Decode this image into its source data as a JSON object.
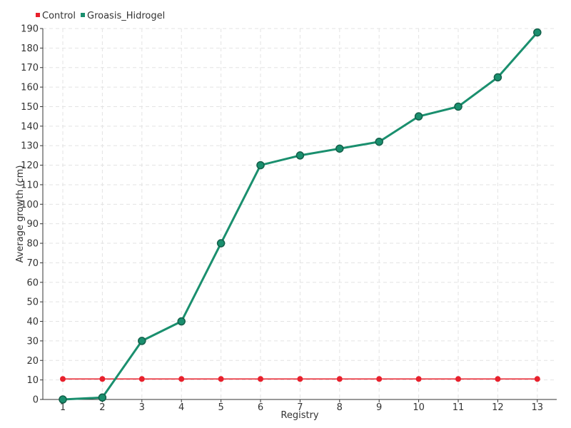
{
  "chart_data": {
    "type": "line",
    "title": "",
    "xlabel": "Registry",
    "ylabel": "Average growth (cm)",
    "categories": [
      "1",
      "2",
      "3",
      "4",
      "5",
      "6",
      "7",
      "8",
      "9",
      "10",
      "11",
      "12",
      "13"
    ],
    "ylim": [
      0,
      190
    ],
    "yticks": [
      0,
      10,
      20,
      30,
      40,
      50,
      60,
      70,
      80,
      90,
      100,
      110,
      120,
      130,
      140,
      150,
      160,
      170,
      180,
      190
    ],
    "grid": true,
    "legend": "top-left",
    "series": [
      {
        "name": "Control",
        "color": "#e8202c",
        "values": [
          10.5,
          10.5,
          10.5,
          10.5,
          10.5,
          10.5,
          10.5,
          10.5,
          10.5,
          10.5,
          10.5,
          10.5,
          10.5
        ]
      },
      {
        "name": "Groasis_Hidrogel",
        "color": "#1a8f6e",
        "values": [
          0,
          1,
          30,
          40,
          80,
          120,
          125,
          128.5,
          132,
          145,
          150,
          165,
          188
        ]
      }
    ]
  }
}
